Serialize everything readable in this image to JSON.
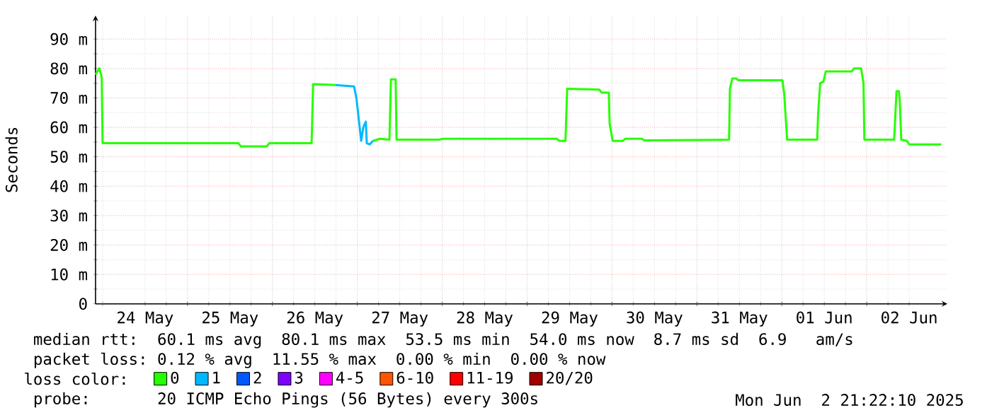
{
  "chart_data": {
    "type": "line",
    "ylabel": "Seconds",
    "legend_title": "loss color:",
    "legend": "bottom",
    "grid": true,
    "xlim": [
      "2025-05-23T22:00",
      "2025-06-02T22:48"
    ],
    "ylim": [
      0,
      98
    ],
    "yticks": [
      0,
      {
        "value": 10,
        "label": "10 m"
      },
      {
        "value": 20,
        "label": "20 m"
      },
      {
        "value": 30,
        "label": "30 m"
      },
      {
        "value": 40,
        "label": "40 m"
      },
      {
        "value": 50,
        "label": "50 m"
      },
      {
        "value": 60,
        "label": "60 m"
      },
      {
        "value": 70,
        "label": "70 m"
      },
      {
        "value": 80,
        "label": "80 m"
      },
      {
        "value": 90,
        "label": "90 m"
      }
    ],
    "xticks": [
      {
        "value": "2025-05-24T12:00",
        "label": "24 May"
      },
      {
        "value": "2025-05-25T12:00",
        "label": "25 May"
      },
      {
        "value": "2025-05-26T12:00",
        "label": "26 May"
      },
      {
        "value": "2025-05-27T12:00",
        "label": "27 May"
      },
      {
        "value": "2025-05-28T12:00",
        "label": "28 May"
      },
      {
        "value": "2025-05-29T12:00",
        "label": "29 May"
      },
      {
        "value": "2025-05-30T12:00",
        "label": "30 May"
      },
      {
        "value": "2025-05-31T12:00",
        "label": "31 May"
      },
      {
        "value": "2025-06-01T12:00",
        "label": "01 Jun"
      },
      {
        "value": "2025-06-02T12:00",
        "label": "02 Jun"
      },
      {
        "value": "2025-05-24T00:00",
        "label": null
      },
      {
        "value": "2025-05-25T00:00",
        "label": null
      },
      {
        "value": "2025-05-26T00:00",
        "label": null
      },
      {
        "value": "2025-05-27T00:00",
        "label": null
      },
      {
        "value": "2025-05-28T00:00",
        "label": null
      },
      {
        "value": "2025-05-29T00:00",
        "label": null
      },
      {
        "value": "2025-05-30T00:00",
        "label": null
      },
      {
        "value": "2025-05-31T00:00",
        "label": null
      },
      {
        "value": "2025-06-01T00:00",
        "label": null
      },
      {
        "value": "2025-06-02T00:00",
        "label": null
      }
    ],
    "series": [
      {
        "name": "0",
        "color": "#26ff00",
        "x": [
          "2025-05-23T22:00",
          "2025-05-23T23:05",
          "2025-05-23T23:45",
          "2025-05-24T00:00",
          "2025-05-25T14:25",
          "2025-05-25T15:05",
          "2025-05-25T22:25",
          "2025-05-25T23:05",
          "2025-05-26T11:05",
          "2025-05-26T11:30",
          "2025-05-26T17:45",
          "2025-05-26T20:00",
          "2025-05-27T04:25",
          "2025-05-27T06:25",
          "2025-05-27T09:05",
          "2025-05-27T09:30",
          "2025-05-27T10:50",
          "2025-05-27T11:05",
          "2025-05-27T23:05",
          "2025-05-28T00:25",
          "2025-05-29T08:25",
          "2025-05-29T09:05",
          "2025-05-29T10:50",
          "2025-05-29T11:20",
          "2025-05-29T20:25",
          "2025-05-29T21:05",
          "2025-05-29T23:05",
          "2025-05-29T23:20",
          "2025-05-30T00:10",
          "2025-05-30T03:05",
          "2025-05-30T03:45",
          "2025-05-30T08:25",
          "2025-05-30T09:05",
          "2025-05-31T09:05",
          "2025-05-31T09:20",
          "2025-05-31T10:00",
          "2025-05-31T11:05",
          "2025-05-31T11:45",
          "2025-06-01T00:10",
          "2025-06-01T00:40",
          "2025-06-01T01:30",
          "2025-06-01T10:00",
          "2025-06-01T10:15",
          "2025-06-01T10:50",
          "2025-06-01T11:45",
          "2025-06-01T12:25",
          "2025-06-01T19:45",
          "2025-06-01T20:25",
          "2025-06-01T22:25",
          "2025-06-01T23:05",
          "2025-06-01T23:20",
          "2025-06-02T07:45",
          "2025-06-02T08:25",
          "2025-06-02T09:05",
          "2025-06-02T09:20",
          "2025-06-02T09:45",
          "2025-06-02T11:20",
          "2025-06-02T12:00",
          "2025-06-02T21:05"
        ],
        "values": [
          77.9,
          80.1,
          77,
          54.6,
          54.6,
          53.5,
          53.5,
          54.6,
          54.6,
          74.7,
          74.4,
          null,
          55.4,
          56.1,
          55.8,
          76.3,
          76.3,
          55.8,
          55.8,
          56.1,
          56.1,
          55.4,
          55.4,
          73.1,
          72.8,
          71.8,
          71.8,
          61.2,
          55.4,
          55.4,
          56.1,
          56.1,
          55.6,
          55.8,
          73.1,
          76.6,
          76.6,
          76,
          76,
          71.5,
          55.8,
          55.8,
          64.3,
          75,
          75.5,
          79,
          79,
          80,
          80,
          75,
          55.8,
          55.8,
          72.3,
          72.3,
          69.1,
          55.8,
          55.4,
          54.2,
          54.2
        ]
      },
      {
        "name": "1",
        "color": "#00b8ff",
        "x": [
          "2025-05-26T17:45",
          "2025-05-26T23:05",
          "2025-05-26T23:45",
          "2025-05-27T00:25",
          "2025-05-27T01:05",
          "2025-05-27T01:45",
          "2025-05-27T02:25",
          "2025-05-27T02:40",
          "2025-05-27T03:30",
          "2025-05-27T04:25"
        ],
        "values": [
          74.4,
          73.9,
          69.9,
          62.7,
          55.4,
          60.3,
          61.9,
          54.6,
          54.2,
          55.4
        ]
      },
      {
        "name": "2",
        "color": "#0059ff"
      },
      {
        "name": "3",
        "color": "#7e00ff"
      },
      {
        "name": "4-5",
        "color": "#ff00ff"
      },
      {
        "name": "6-10",
        "color": "#ff5500"
      },
      {
        "name": "11-19",
        "color": "#ff0000"
      },
      {
        "name": "20/20",
        "color": "#a10000"
      }
    ],
    "annotations": [
      "median rtt:  60.1 ms avg  80.1 ms max  53.5 ms min  54.0 ms now  8.7 ms sd  6.9   am/s",
      "packet loss: 0.12 % avg  11.55 % max  0.00 % min  0.00 % now",
      "probe:       20 ICMP Echo Pings (56 Bytes) every 300s",
      "Mon Jun  2 21:22:10 2025"
    ]
  }
}
